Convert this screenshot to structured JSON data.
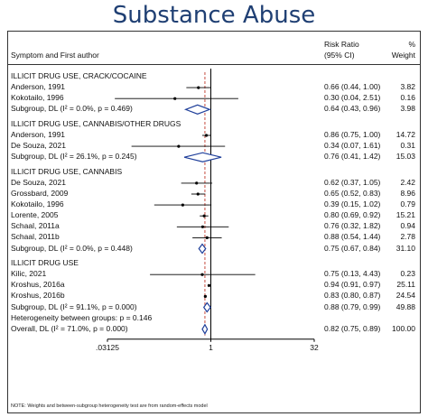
{
  "title": "Substance Abuse",
  "headers": {
    "left": "Symptom and First author",
    "rr": [
      "Risk Ratio",
      "(95% CI)"
    ],
    "pct": [
      "%",
      "Weight"
    ]
  },
  "footnote": "NOTE: Weights and between-subgroup heterogeneity test are from random-effects model",
  "chart_data": {
    "type": "forest",
    "x_scale": "log",
    "x_ticks": [
      ".03125",
      "1",
      "32"
    ],
    "xlim": [
      0.03125,
      32
    ],
    "reference_line": 1,
    "overall_line": 0.82,
    "rows": [
      {
        "kind": "group",
        "label": "ILLICIT DRUG USE, CRACK/COCAINE"
      },
      {
        "kind": "study",
        "label": "Anderson, 1991",
        "est": 0.66,
        "lo": 0.44,
        "hi": 1.0,
        "ci": "0.66 (0.44, 1.00)",
        "weight": "3.82"
      },
      {
        "kind": "study",
        "label": "Kokotailo, 1996",
        "est": 0.3,
        "lo": 0.04,
        "hi": 2.51,
        "ci": "0.30 (0.04, 2.51)",
        "weight": "0.16"
      },
      {
        "kind": "subtotal",
        "label": "Subgroup, DL (I² = 0.0%, p = 0.469)",
        "est": 0.64,
        "lo": 0.43,
        "hi": 0.96,
        "ci": "0.64 (0.43, 0.96)",
        "weight": "3.98"
      },
      {
        "kind": "group",
        "label": "ILLICIT DRUG USE, CANNABIS/OTHER DRUGS"
      },
      {
        "kind": "study",
        "label": "Anderson, 1991",
        "est": 0.86,
        "lo": 0.75,
        "hi": 1.0,
        "ci": "0.86 (0.75, 1.00)",
        "weight": "14.72"
      },
      {
        "kind": "study",
        "label": "De Souza, 2021",
        "est": 0.34,
        "lo": 0.07,
        "hi": 1.61,
        "ci": "0.34 (0.07, 1.61)",
        "weight": "0.31"
      },
      {
        "kind": "subtotal",
        "label": "Subgroup, DL (I² = 26.1%, p = 0.245)",
        "est": 0.76,
        "lo": 0.41,
        "hi": 1.42,
        "ci": "0.76 (0.41, 1.42)",
        "weight": "15.03"
      },
      {
        "kind": "group",
        "label": "ILLICIT DRUG USE, CANNABIS"
      },
      {
        "kind": "study",
        "label": "De Souza, 2021",
        "est": 0.62,
        "lo": 0.37,
        "hi": 1.05,
        "ci": "0.62 (0.37, 1.05)",
        "weight": "2.42"
      },
      {
        "kind": "study",
        "label": "Grossbard, 2009",
        "est": 0.65,
        "lo": 0.52,
        "hi": 0.83,
        "ci": "0.65 (0.52, 0.83)",
        "weight": "8.96"
      },
      {
        "kind": "study",
        "label": "Kokotailo, 1996",
        "est": 0.39,
        "lo": 0.15,
        "hi": 1.02,
        "ci": "0.39 (0.15, 1.02)",
        "weight": "0.79"
      },
      {
        "kind": "study",
        "label": "Lorente, 2005",
        "est": 0.8,
        "lo": 0.69,
        "hi": 0.92,
        "ci": "0.80 (0.69, 0.92)",
        "weight": "15.21"
      },
      {
        "kind": "study",
        "label": "Schaal, 2011a",
        "est": 0.76,
        "lo": 0.32,
        "hi": 1.82,
        "ci": "0.76 (0.32, 1.82)",
        "weight": "0.94"
      },
      {
        "kind": "study",
        "label": "Schaal, 2011b",
        "est": 0.88,
        "lo": 0.54,
        "hi": 1.44,
        "ci": "0.88 (0.54, 1.44)",
        "weight": "2.78"
      },
      {
        "kind": "subtotal",
        "label": "Subgroup, DL (I² = 0.0%, p = 0.448)",
        "est": 0.75,
        "lo": 0.67,
        "hi": 0.84,
        "ci": "0.75 (0.67, 0.84)",
        "weight": "31.10"
      },
      {
        "kind": "group",
        "label": "ILLICIT DRUG USE"
      },
      {
        "kind": "study",
        "label": "Kilic, 2021",
        "est": 0.75,
        "lo": 0.13,
        "hi": 4.43,
        "ci": "0.75 (0.13, 4.43)",
        "weight": "0.23"
      },
      {
        "kind": "study",
        "label": "Kroshus, 2016a",
        "est": 0.94,
        "lo": 0.91,
        "hi": 0.97,
        "ci": "0.94 (0.91, 0.97)",
        "weight": "25.11"
      },
      {
        "kind": "study",
        "label": "Kroshus, 2016b",
        "est": 0.83,
        "lo": 0.8,
        "hi": 0.87,
        "ci": "0.83 (0.80, 0.87)",
        "weight": "24.54"
      },
      {
        "kind": "subtotal",
        "label": "Subgroup, DL (I² = 91.1%, p = 0.000)",
        "est": 0.88,
        "lo": 0.79,
        "hi": 0.99,
        "ci": "0.88 (0.79, 0.99)",
        "weight": "49.88"
      },
      {
        "kind": "text",
        "label": "Heterogeneity between groups: p = 0.146"
      },
      {
        "kind": "overall",
        "label": "Overall, DL (I² = 71.0%, p = 0.000)",
        "est": 0.82,
        "lo": 0.75,
        "hi": 0.89,
        "ci": "0.82 (0.75, 0.89)",
        "weight": "100.00"
      }
    ]
  },
  "colors": {
    "title": "#1f3f73",
    "diamond": "#1f3f9a",
    "reference_line": "#c0392b"
  }
}
